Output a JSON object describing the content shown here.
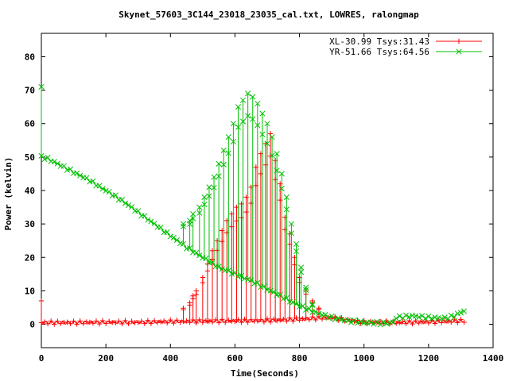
{
  "chart_data": {
    "type": "line",
    "title": "Skynet_57603_3C144_23018_23035_cal.txt, LOWRES, ralongmap",
    "xlabel": "Time(Seconds)",
    "ylabel": "Power (kelvin)",
    "xlim": [
      0,
      1400
    ],
    "ylim": [
      -7,
      87
    ],
    "xticks": [
      0,
      200,
      400,
      600,
      800,
      1000,
      1200,
      1400
    ],
    "yticks": [
      0,
      10,
      20,
      30,
      40,
      50,
      60,
      70,
      80
    ],
    "grid": false,
    "legend_position": "top-right",
    "series": [
      {
        "name": "XL-30.99 Tsys:31.43",
        "color": "#ff0000",
        "marker": "+",
        "baseline": [
          [
            0,
            0.5
          ],
          [
            100,
            0.5
          ],
          [
            200,
            0.6
          ],
          [
            300,
            0.6
          ],
          [
            400,
            0.8
          ],
          [
            500,
            0.9
          ],
          [
            600,
            1.0
          ],
          [
            700,
            1.1
          ],
          [
            800,
            1.5
          ],
          [
            850,
            1.8
          ],
          [
            900,
            2.0
          ],
          [
            950,
            1.2
          ],
          [
            1000,
            0.6
          ],
          [
            1100,
            0.5
          ],
          [
            1200,
            0.7
          ],
          [
            1310,
            1.0
          ]
        ],
        "spikes": [
          [
            440,
            4.8
          ],
          [
            460,
            6.4
          ],
          [
            470,
            8.5
          ],
          [
            480,
            10
          ],
          [
            500,
            14
          ],
          [
            515,
            18
          ],
          [
            530,
            22
          ],
          [
            545,
            25
          ],
          [
            560,
            28
          ],
          [
            575,
            31
          ],
          [
            590,
            33
          ],
          [
            605,
            35
          ],
          [
            620,
            36
          ],
          [
            635,
            38
          ],
          [
            650,
            41
          ],
          [
            665,
            47
          ],
          [
            680,
            51
          ],
          [
            695,
            54
          ],
          [
            710,
            57
          ],
          [
            725,
            49
          ],
          [
            740,
            42
          ],
          [
            755,
            32
          ],
          [
            770,
            27
          ],
          [
            785,
            20
          ],
          [
            800,
            14
          ],
          [
            820,
            10
          ],
          [
            840,
            7
          ],
          [
            860,
            4.8
          ]
        ],
        "start_spike": 7
      },
      {
        "name": "YR-51.66 Tsys:64.56",
        "color": "#00c000",
        "marker": "x",
        "baseline": [
          [
            0,
            50
          ],
          [
            20,
            49.5
          ],
          [
            50,
            48
          ],
          [
            100,
            45.5
          ],
          [
            150,
            43
          ],
          [
            200,
            40
          ],
          [
            250,
            37
          ],
          [
            300,
            33.5
          ],
          [
            350,
            30
          ],
          [
            400,
            26.5
          ],
          [
            450,
            23
          ],
          [
            500,
            20
          ],
          [
            550,
            17
          ],
          [
            600,
            15
          ],
          [
            650,
            13
          ],
          [
            700,
            10.5
          ],
          [
            750,
            8
          ],
          [
            800,
            5.5
          ],
          [
            850,
            3.5
          ],
          [
            900,
            2
          ],
          [
            950,
            1
          ],
          [
            1000,
            0.5
          ],
          [
            1050,
            0.3
          ],
          [
            1090,
            0.5
          ],
          [
            1100,
            2
          ],
          [
            1150,
            2.5
          ],
          [
            1200,
            2
          ],
          [
            1250,
            1.8
          ],
          [
            1280,
            2.5
          ],
          [
            1310,
            4
          ]
        ],
        "spikes": [
          [
            440,
            30
          ],
          [
            460,
            31
          ],
          [
            470,
            33
          ],
          [
            490,
            35
          ],
          [
            505,
            38
          ],
          [
            520,
            41
          ],
          [
            535,
            44
          ],
          [
            550,
            48
          ],
          [
            565,
            52
          ],
          [
            580,
            56
          ],
          [
            595,
            60
          ],
          [
            610,
            65
          ],
          [
            625,
            67
          ],
          [
            640,
            69
          ],
          [
            655,
            68
          ],
          [
            670,
            66
          ],
          [
            685,
            63
          ],
          [
            700,
            60
          ],
          [
            715,
            56
          ],
          [
            730,
            51
          ],
          [
            745,
            45
          ],
          [
            760,
            38
          ],
          [
            775,
            30
          ],
          [
            790,
            24
          ],
          [
            805,
            17
          ],
          [
            820,
            11
          ],
          [
            840,
            6
          ]
        ],
        "start_spike": 71
      }
    ]
  }
}
